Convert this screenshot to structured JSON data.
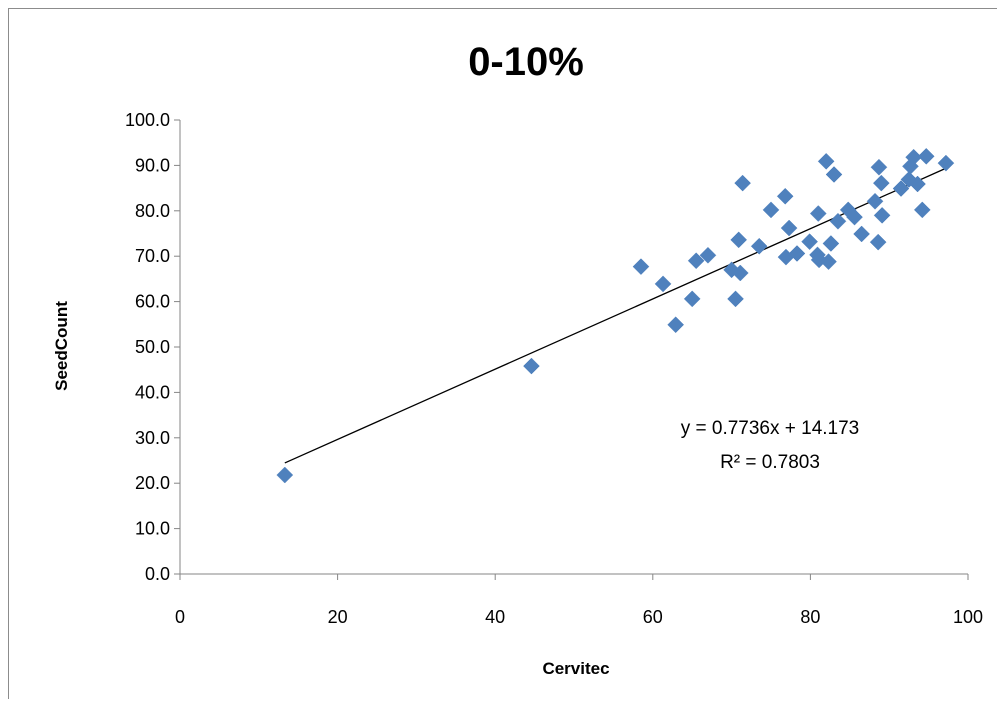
{
  "chart_data": {
    "type": "scatter",
    "title": "0-10%",
    "xlabel": "Cervitec",
    "ylabel": "SeedCount",
    "xlim": [
      0,
      100
    ],
    "ylim": [
      0,
      100
    ],
    "x_ticks": [
      "0",
      "20",
      "40",
      "60",
      "80",
      "100"
    ],
    "y_ticks": [
      "0.0",
      "10.0",
      "20.0",
      "30.0",
      "40.0",
      "50.0",
      "60.0",
      "70.0",
      "80.0",
      "90.0",
      "100.0"
    ],
    "grid": false,
    "legend": "none",
    "marker_color": "#4f81bd",
    "trendline": {
      "type": "linear",
      "slope": 0.7736,
      "intercept": 14.173,
      "x_range": [
        13.3,
        97.2
      ],
      "equation_label": "y = 0.7736x + 14.173",
      "r2_label": "R² = 0.7803"
    },
    "points": [
      [
        13.3,
        21.8
      ],
      [
        44.6,
        45.8
      ],
      [
        58.5,
        67.7
      ],
      [
        61.3,
        63.9
      ],
      [
        62.9,
        54.9
      ],
      [
        65.0,
        60.6
      ],
      [
        65.5,
        69.0
      ],
      [
        67.0,
        70.2
      ],
      [
        70.0,
        67.0
      ],
      [
        70.5,
        60.6
      ],
      [
        70.9,
        73.6
      ],
      [
        71.1,
        66.3
      ],
      [
        71.4,
        86.1
      ],
      [
        73.5,
        72.2
      ],
      [
        75.0,
        80.2
      ],
      [
        76.8,
        83.2
      ],
      [
        76.9,
        69.8
      ],
      [
        77.3,
        76.2
      ],
      [
        78.3,
        70.6
      ],
      [
        79.9,
        73.2
      ],
      [
        80.9,
        70.3
      ],
      [
        81.0,
        79.4
      ],
      [
        81.1,
        69.2
      ],
      [
        82.0,
        90.9
      ],
      [
        82.3,
        68.8
      ],
      [
        82.6,
        72.8
      ],
      [
        83.0,
        88.0
      ],
      [
        83.5,
        77.7
      ],
      [
        84.8,
        80.2
      ],
      [
        85.6,
        78.6
      ],
      [
        86.5,
        74.9
      ],
      [
        88.2,
        82.1
      ],
      [
        88.6,
        73.1
      ],
      [
        88.7,
        89.6
      ],
      [
        89.0,
        86.1
      ],
      [
        89.1,
        79.0
      ],
      [
        91.5,
        84.9
      ],
      [
        92.5,
        86.9
      ],
      [
        92.7,
        89.8
      ],
      [
        93.1,
        91.8
      ],
      [
        93.6,
        85.9
      ],
      [
        94.2,
        80.2
      ],
      [
        94.7,
        92.0
      ],
      [
        97.2,
        90.5
      ]
    ]
  }
}
